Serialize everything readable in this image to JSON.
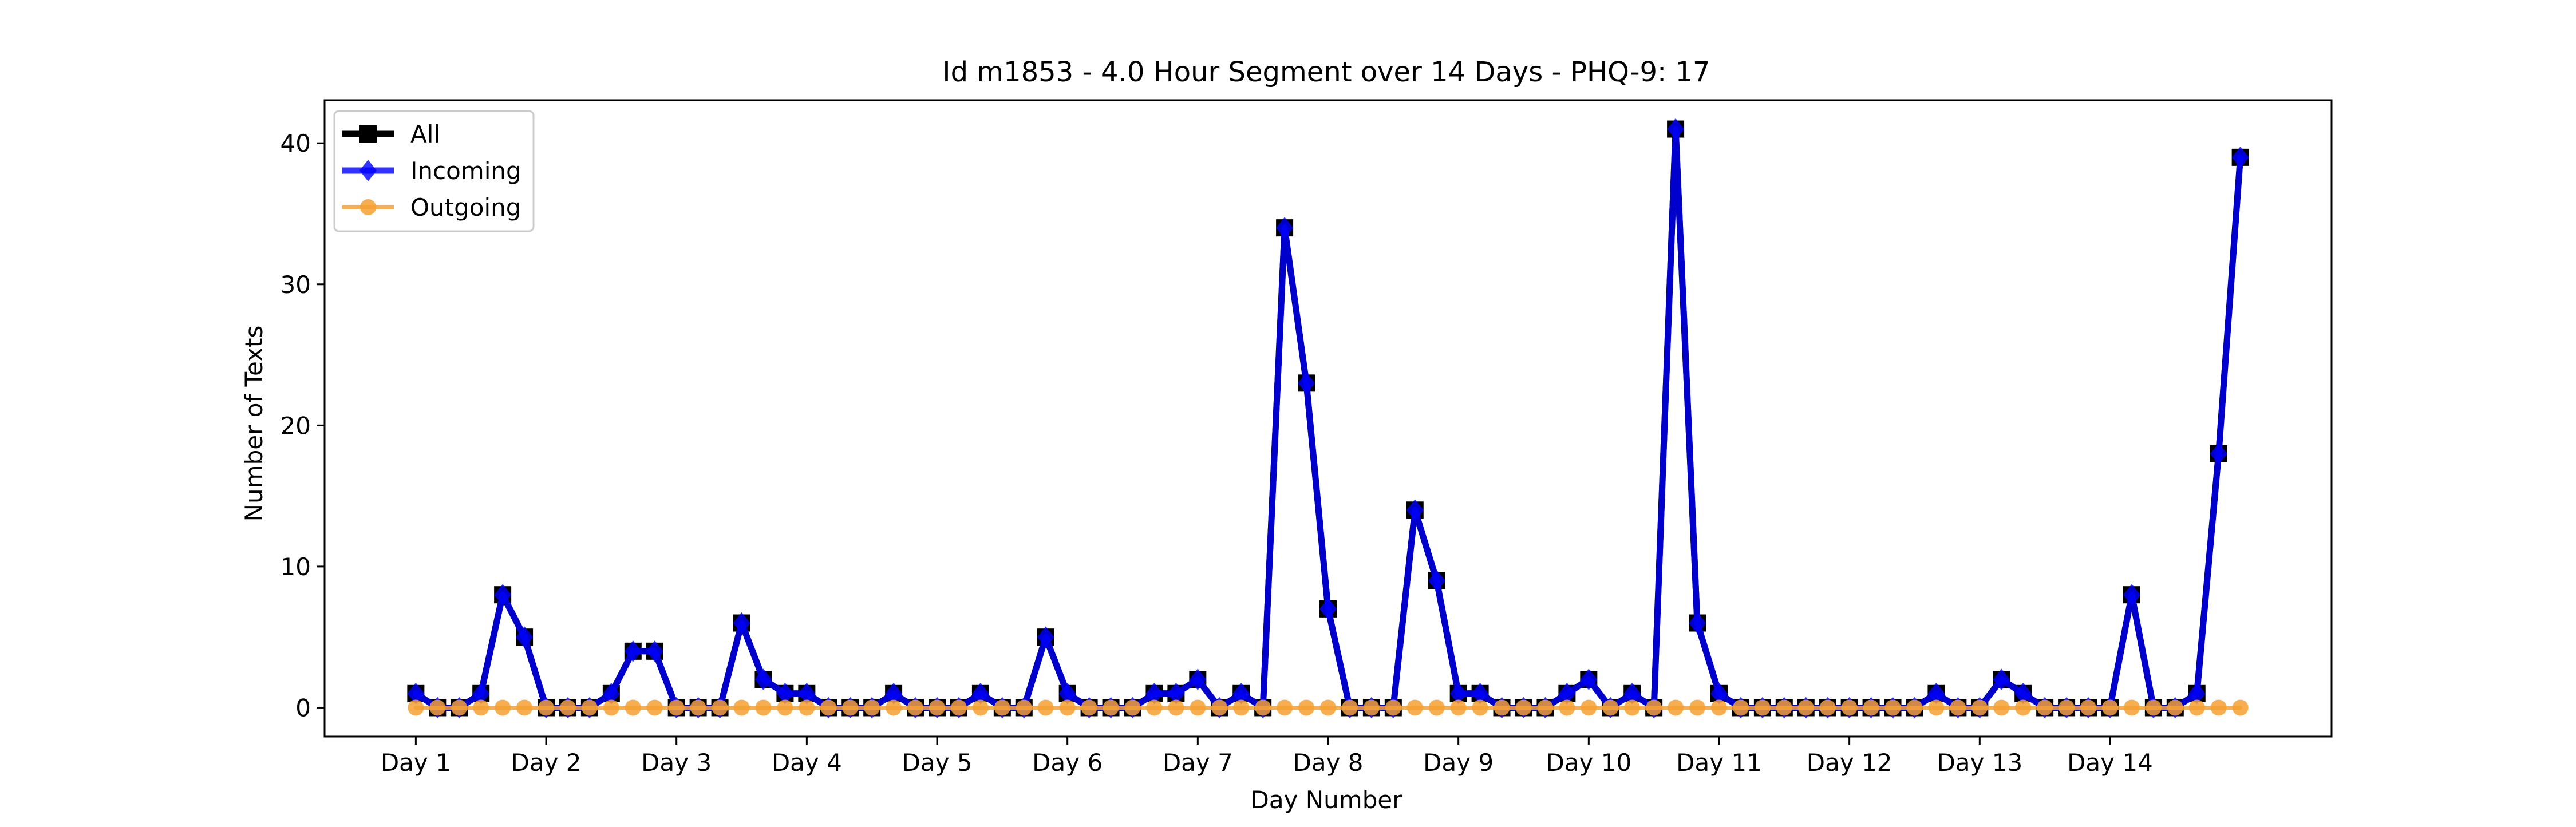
{
  "chart_data": {
    "type": "line",
    "title": "Id m1853 - 4.0 Hour Segment over 14 Days - PHQ-9: 17",
    "xlabel": "Day Number",
    "ylabel": "Number of Texts",
    "x_tick_labels": [
      "Day 1",
      "Day 2",
      "Day 3",
      "Day 4",
      "Day 5",
      "Day 6",
      "Day 7",
      "Day 8",
      "Day 9",
      "Day 10",
      "Day 11",
      "Day 12",
      "Day 13",
      "Day 14"
    ],
    "y_ticks": [
      0,
      10,
      20,
      30,
      40
    ],
    "ylim": [
      -2.05,
      43.05
    ],
    "xlim": [
      -1.4,
      29.4
    ],
    "points_per_day": 6,
    "grid": false,
    "legend_position": "upper left",
    "series": [
      {
        "name": "All",
        "color": "#000000",
        "marker": "square",
        "values": [
          1,
          0,
          0,
          1,
          8,
          5,
          0,
          0,
          0,
          1,
          4,
          4,
          0,
          0,
          0,
          6,
          2,
          1,
          1,
          0,
          0,
          0,
          1,
          0,
          0,
          0,
          1,
          0,
          0,
          5,
          1,
          0,
          0,
          0,
          1,
          1,
          2,
          0,
          1,
          0,
          34,
          23,
          7,
          0,
          0,
          0,
          14,
          9,
          1,
          1,
          0,
          0,
          0,
          1,
          2,
          0,
          1,
          0,
          41,
          6,
          1,
          0,
          0,
          0,
          0,
          0,
          0,
          0,
          0,
          0,
          1,
          0,
          0,
          2,
          1,
          0,
          0,
          0,
          0,
          8,
          0,
          0,
          1,
          18,
          39
        ]
      },
      {
        "name": "Incoming",
        "color": "#0000ff",
        "marker": "diamond",
        "values": [
          1,
          0,
          0,
          1,
          8,
          5,
          0,
          0,
          0,
          1,
          4,
          4,
          0,
          0,
          0,
          6,
          2,
          1,
          1,
          0,
          0,
          0,
          1,
          0,
          0,
          0,
          1,
          0,
          0,
          5,
          1,
          0,
          0,
          0,
          1,
          1,
          2,
          0,
          1,
          0,
          34,
          23,
          7,
          0,
          0,
          0,
          14,
          9,
          1,
          1,
          0,
          0,
          0,
          1,
          2,
          0,
          1,
          0,
          41,
          6,
          1,
          0,
          0,
          0,
          0,
          0,
          0,
          0,
          0,
          0,
          1,
          0,
          0,
          2,
          1,
          0,
          0,
          0,
          0,
          8,
          0,
          0,
          1,
          18,
          39
        ]
      },
      {
        "name": "Outgoing",
        "color": "#f5a031",
        "marker": "circle",
        "values": [
          0,
          0,
          0,
          0,
          0,
          0,
          0,
          0,
          0,
          0,
          0,
          0,
          0,
          0,
          0,
          0,
          0,
          0,
          0,
          0,
          0,
          0,
          0,
          0,
          0,
          0,
          0,
          0,
          0,
          0,
          0,
          0,
          0,
          0,
          0,
          0,
          0,
          0,
          0,
          0,
          0,
          0,
          0,
          0,
          0,
          0,
          0,
          0,
          0,
          0,
          0,
          0,
          0,
          0,
          0,
          0,
          0,
          0,
          0,
          0,
          0,
          0,
          0,
          0,
          0,
          0,
          0,
          0,
          0,
          0,
          0,
          0,
          0,
          0,
          0,
          0,
          0,
          0,
          0,
          0,
          0,
          0,
          0,
          0,
          0
        ]
      }
    ]
  }
}
